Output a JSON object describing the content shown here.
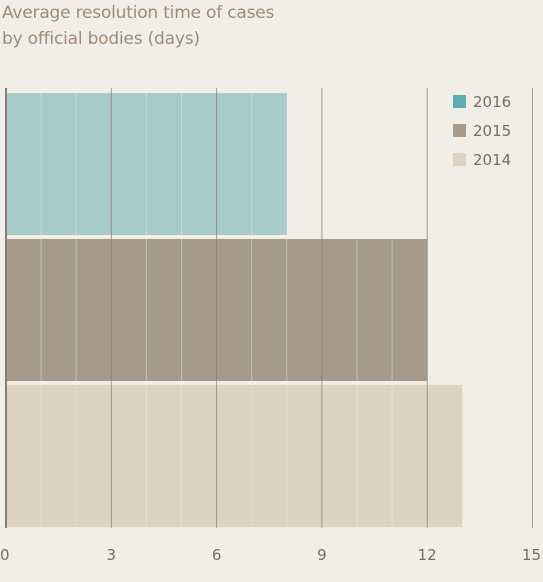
{
  "chart_data": {
    "type": "bar",
    "orientation": "horizontal",
    "title_lines": [
      "Average resolution time of cases",
      "by official bodies (days)"
    ],
    "xlim": [
      0,
      15
    ],
    "x_ticks": [
      0,
      3,
      6,
      9,
      12,
      15
    ],
    "grid": true,
    "legend_position": "top-right",
    "series": [
      {
        "name": "2016",
        "value": 8,
        "color": "#a6cbca"
      },
      {
        "name": "2015",
        "value": 12,
        "color": "#a69a8b"
      },
      {
        "name": "2014",
        "value": 13,
        "color": "#dbd2c2"
      }
    ],
    "colors": {
      "background": "#f0eee6",
      "grid": "#8a7c70",
      "bar_divider": "#f0eee6",
      "title": "#a08a78",
      "legend_2016": "#5eaeb0"
    }
  }
}
